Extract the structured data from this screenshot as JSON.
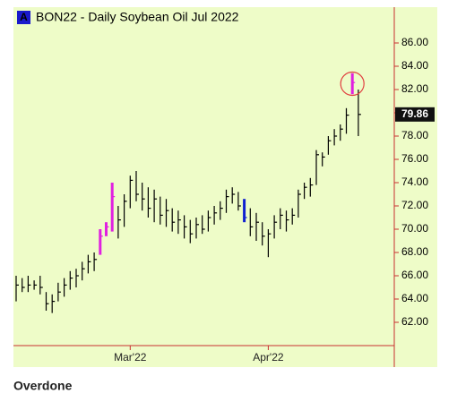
{
  "chart_data": {
    "type": "ohlc",
    "badge": "A",
    "title": "BON22 - Daily  Soybean Oil Jul 2022",
    "caption": "Overdone",
    "categories": [
      null,
      null,
      null,
      null,
      null,
      null,
      null,
      null,
      null,
      null,
      null,
      null,
      null,
      null,
      null,
      null,
      null,
      null,
      null,
      "Mar'22",
      null,
      null,
      null,
      null,
      null,
      null,
      null,
      null,
      null,
      null,
      null,
      null,
      null,
      null,
      null,
      null,
      null,
      null,
      null,
      null,
      null,
      null,
      "Apr'22",
      null,
      null,
      null,
      null,
      null,
      null,
      null,
      null,
      null,
      null,
      null,
      null,
      null,
      null,
      null
    ],
    "high": [
      66.0,
      65.8,
      66.0,
      65.6,
      66.0,
      64.6,
      64.4,
      65.4,
      65.8,
      66.4,
      66.6,
      67.2,
      67.8,
      68.0,
      70.0,
      70.6,
      74.0,
      72.0,
      73.0,
      74.6,
      75.0,
      74.0,
      73.6,
      73.4,
      72.8,
      72.6,
      71.8,
      71.6,
      71.2,
      70.8,
      71.0,
      71.2,
      71.6,
      72.0,
      72.4,
      73.4,
      73.6,
      73.2,
      72.6,
      71.8,
      71.4,
      70.6,
      70.0,
      71.2,
      71.8,
      71.6,
      71.8,
      73.4,
      74.0,
      74.4,
      76.8,
      76.6,
      78.0,
      78.6,
      79.0,
      80.4,
      83.4,
      82.0
    ],
    "low": [
      63.8,
      64.6,
      64.6,
      64.8,
      64.4,
      63.0,
      62.8,
      63.8,
      64.2,
      64.8,
      65.0,
      65.6,
      66.2,
      66.4,
      67.8,
      69.4,
      69.8,
      69.2,
      70.2,
      71.8,
      72.4,
      71.6,
      71.0,
      70.6,
      70.4,
      70.2,
      69.8,
      69.6,
      69.2,
      68.8,
      69.2,
      69.6,
      69.8,
      70.4,
      70.8,
      71.4,
      72.2,
      71.6,
      70.6,
      69.4,
      69.0,
      68.6,
      67.6,
      69.2,
      70.0,
      69.8,
      70.4,
      71.0,
      72.6,
      72.8,
      73.8,
      75.4,
      76.4,
      77.2,
      77.6,
      78.2,
      81.6,
      78.0
    ],
    "close": [
      65.2,
      65.0,
      65.2,
      65.2,
      65.0,
      63.6,
      63.8,
      64.6,
      65.2,
      65.8,
      66.0,
      66.6,
      67.2,
      67.4,
      69.4,
      70.2,
      72.8,
      70.8,
      72.4,
      74.2,
      73.0,
      72.6,
      71.8,
      72.6,
      71.2,
      71.6,
      70.6,
      70.8,
      70.2,
      69.6,
      70.4,
      70.0,
      71.0,
      71.4,
      71.8,
      72.8,
      73.0,
      72.0,
      71.0,
      70.2,
      70.6,
      69.4,
      69.6,
      70.6,
      71.2,
      70.8,
      71.2,
      73.0,
      73.6,
      73.8,
      76.4,
      76.2,
      77.6,
      78.0,
      78.6,
      79.8,
      82.6,
      79.86
    ],
    "color": "#000000",
    "highlights": [
      {
        "indices": [
          14,
          15,
          16,
          56
        ],
        "color": "#e020e0"
      },
      {
        "indices": [
          38
        ],
        "color": "#1020d0"
      }
    ],
    "ylim": [
      60,
      89
    ],
    "yticks": [
      {
        "value": 62,
        "label": "62.00"
      },
      {
        "value": 64,
        "label": "64.00"
      },
      {
        "value": 66,
        "label": "66.00"
      },
      {
        "value": 68,
        "label": "68.00"
      },
      {
        "value": 70,
        "label": "70.00"
      },
      {
        "value": 72,
        "label": "72.00"
      },
      {
        "value": 74,
        "label": "74.00"
      },
      {
        "value": 76,
        "label": "76.00"
      },
      {
        "value": 78,
        "label": "78.00"
      },
      {
        "value": 80,
        "label": "80.00"
      },
      {
        "value": 82,
        "label": "82.00"
      },
      {
        "value": 84,
        "label": "84.00"
      },
      {
        "value": 86,
        "label": "86.00"
      }
    ],
    "circled_index": 56
  }
}
